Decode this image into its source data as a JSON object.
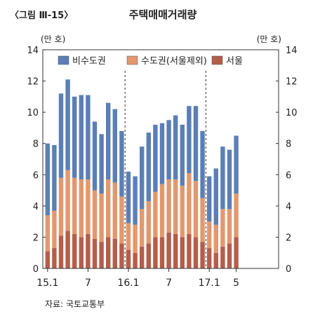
{
  "figure": {
    "label": "〈그림 Ⅲ-15〉",
    "title": "주택매매거래량",
    "source": "자료: 국토교통부"
  },
  "chart_data": {
    "type": "bar",
    "stacked": true,
    "title": "주택매매거래량",
    "ylabel_left": "(만 호)",
    "ylabel_right": "(만 호)",
    "ylim": [
      0,
      14
    ],
    "yticks": [
      0,
      2,
      4,
      6,
      8,
      10,
      12,
      14
    ],
    "xtick_labels": [
      {
        "index": 0,
        "label": "15.1"
      },
      {
        "index": 6,
        "label": "7"
      },
      {
        "index": 12,
        "label": "16.1"
      },
      {
        "index": 18,
        "label": "7"
      },
      {
        "index": 24,
        "label": "17.1"
      },
      {
        "index": 28,
        "label": "5"
      }
    ],
    "dividers_after_index": [
      11,
      23
    ],
    "legend_position": "top",
    "categories": [
      "15.1",
      "15.2",
      "15.3",
      "15.4",
      "15.5",
      "15.6",
      "15.7",
      "15.8",
      "15.9",
      "15.10",
      "15.11",
      "15.12",
      "16.1",
      "16.2",
      "16.3",
      "16.4",
      "16.5",
      "16.6",
      "16.7",
      "16.8",
      "16.9",
      "16.10",
      "16.11",
      "16.12",
      "17.1",
      "17.2",
      "17.3",
      "17.4",
      "17.5"
    ],
    "series": [
      {
        "name": "서울",
        "color": "#b45e49",
        "values": [
          1.1,
          1.3,
          2.1,
          2.4,
          2.2,
          2.0,
          2.2,
          1.9,
          1.7,
          2.0,
          1.9,
          1.6,
          1.2,
          1.0,
          1.4,
          1.6,
          2.0,
          2.0,
          2.3,
          2.2,
          2.0,
          2.2,
          2.0,
          1.7,
          1.3,
          1.0,
          1.4,
          1.6,
          2.0
        ]
      },
      {
        "name": "수도권(서울제외)",
        "color": "#e2986e",
        "values": [
          2.3,
          2.4,
          3.7,
          3.9,
          3.6,
          3.7,
          3.5,
          3.1,
          3.1,
          3.7,
          3.6,
          3.0,
          1.7,
          1.8,
          2.4,
          2.7,
          2.9,
          3.4,
          3.4,
          3.5,
          3.3,
          3.9,
          3.6,
          2.8,
          1.7,
          1.8,
          2.4,
          2.2,
          2.8
        ]
      },
      {
        "name": "비수도권",
        "color": "#5b7fb5",
        "values": [
          4.6,
          4.2,
          5.4,
          5.8,
          5.2,
          5.4,
          5.4,
          4.4,
          3.8,
          4.9,
          4.7,
          4.2,
          3.3,
          3.1,
          4.0,
          4.4,
          4.3,
          3.9,
          3.8,
          4.1,
          3.9,
          4.3,
          4.8,
          4.3,
          2.9,
          3.6,
          4.0,
          3.8,
          3.7
        ]
      }
    ]
  }
}
